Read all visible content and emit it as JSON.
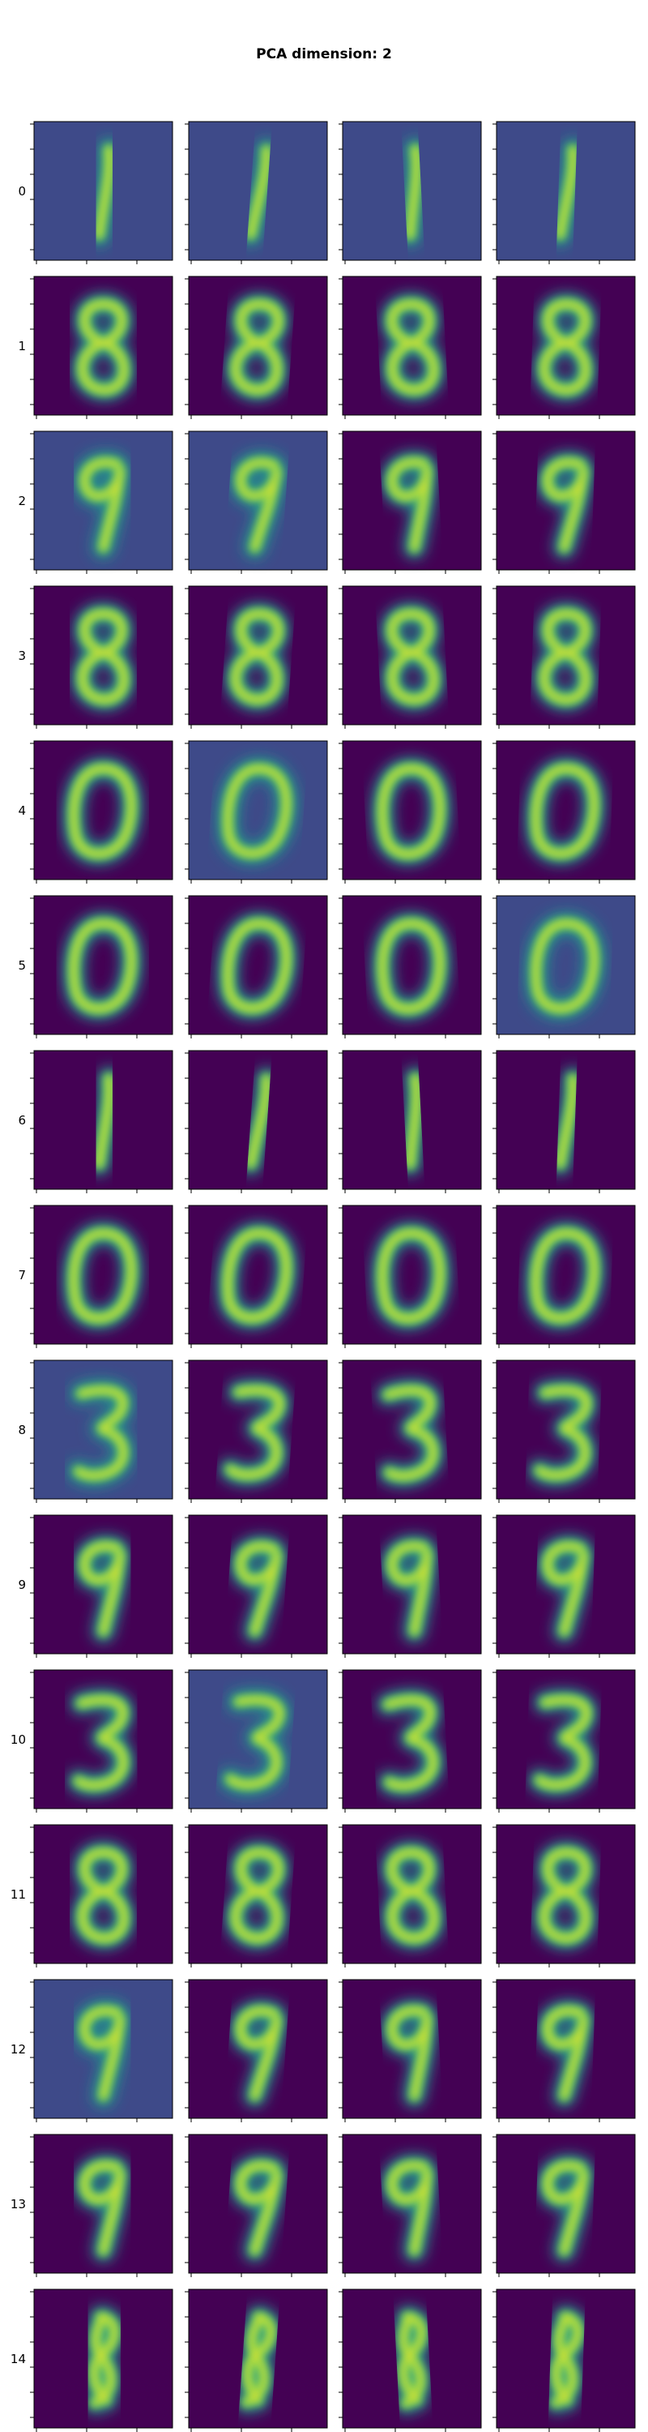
{
  "title": "PCA dimension: 2",
  "rows": [
    {
      "label": "0"
    },
    {
      "label": "1"
    },
    {
      "label": "2"
    },
    {
      "label": "3"
    },
    {
      "label": "4"
    },
    {
      "label": "5"
    },
    {
      "label": "6"
    },
    {
      "label": "7"
    },
    {
      "label": "8"
    },
    {
      "label": "9"
    },
    {
      "label": "10"
    },
    {
      "label": "11"
    },
    {
      "label": "12"
    },
    {
      "label": "13"
    },
    {
      "label": "14"
    }
  ]
}
